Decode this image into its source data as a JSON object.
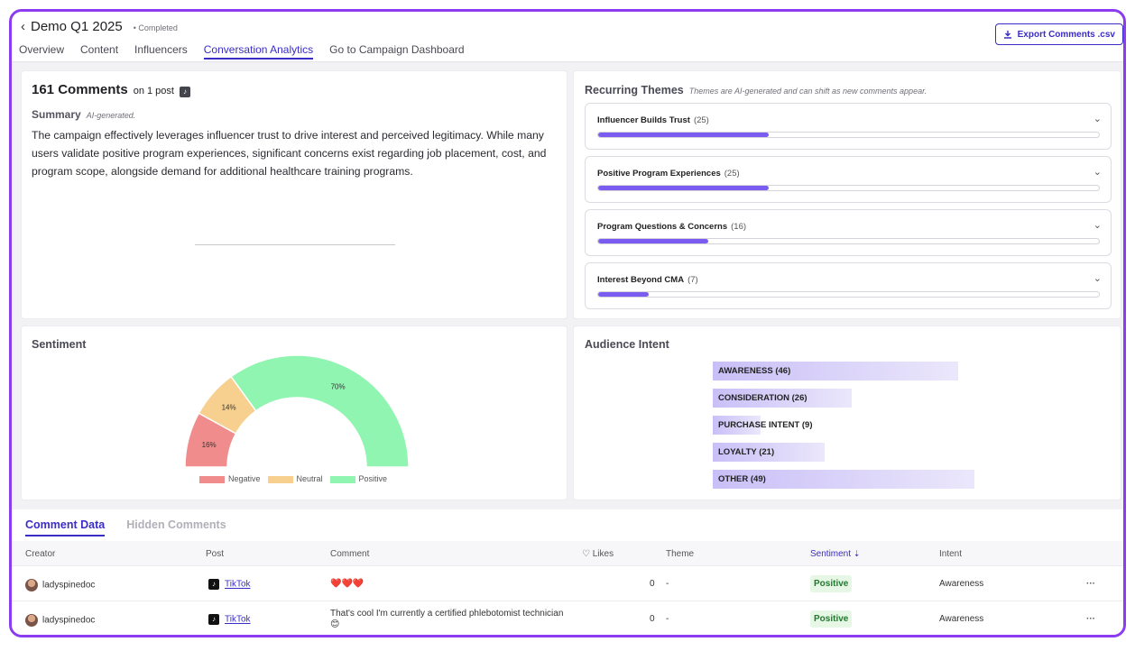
{
  "header": {
    "back_icon": "chevron-left-icon",
    "title": "Demo Q1 2025",
    "status": "• Completed",
    "tabs": [
      "Overview",
      "Content",
      "Influencers",
      "Conversation Analytics",
      "Go to Campaign Dashboard"
    ],
    "active_tab": "Conversation Analytics",
    "export_label": "Export Comments .csv",
    "export_icon": "download-icon"
  },
  "comments_card": {
    "count": "161 Comments",
    "on_post": "on 1 post",
    "summary_label": "Summary",
    "summary_ai": "AI-generated.",
    "summary_text": "The campaign effectively leverages influencer trust to drive interest and perceived legitimacy. While many users validate positive program experiences, significant concerns exist regarding job placement, cost, and program scope, alongside demand for additional healthcare training programs."
  },
  "themes_card": {
    "title": "Recurring Themes",
    "note": "Themes are AI-generated and can shift as new comments appear.",
    "items": [
      {
        "label": "Influencer Builds Trust",
        "count": "(25)",
        "fill": 0.34
      },
      {
        "label": "Positive Program Experiences",
        "count": "(25)",
        "fill": 0.34
      },
      {
        "label": "Program Questions & Concerns",
        "count": "(16)",
        "fill": 0.22
      },
      {
        "label": "Interest Beyond CMA",
        "count": "(7)",
        "fill": 0.1
      }
    ]
  },
  "sentiment_card": {
    "title": "Sentiment",
    "slices": [
      {
        "name": "Negative",
        "percent": 16,
        "label": "16%",
        "color": "#f08c8c"
      },
      {
        "name": "Neutral",
        "percent": 14,
        "label": "14%",
        "color": "#f7d08f"
      },
      {
        "name": "Positive",
        "percent": 70,
        "label": "70%",
        "color": "#8ff5b0"
      }
    ]
  },
  "intent_card": {
    "title": "Audience Intent",
    "bars": [
      {
        "label": "AWARENESS (46)",
        "value": 46
      },
      {
        "label": "CONSIDERATION (26)",
        "value": 26
      },
      {
        "label": "PURCHASE INTENT (9)",
        "value": 9
      },
      {
        "label": "LOYALTY (21)",
        "value": 21
      },
      {
        "label": "OTHER (49)",
        "value": 49
      }
    ]
  },
  "comment_table": {
    "tabs": [
      "Comment Data",
      "Hidden Comments"
    ],
    "columns": {
      "creator": "Creator",
      "post": "Post",
      "comment": "Comment",
      "likes": "♡ Likes",
      "theme": "Theme",
      "sentiment": "Sentiment",
      "intent": "Intent"
    },
    "rows": [
      {
        "creator": "ladyspinedoc",
        "post": "TikTok",
        "comment": "❤️❤️❤️",
        "comment2": "",
        "likes": "0",
        "theme": "-",
        "sentiment": "Positive",
        "intent": "Awareness",
        "more": "···"
      },
      {
        "creator": "ladyspinedoc",
        "post": "TikTok",
        "comment": "That's cool I'm currently a certified phlebotomist technician",
        "comment2": "😊",
        "likes": "0",
        "theme": "-",
        "sentiment": "Positive",
        "intent": "Awareness",
        "more": "···"
      }
    ]
  }
}
